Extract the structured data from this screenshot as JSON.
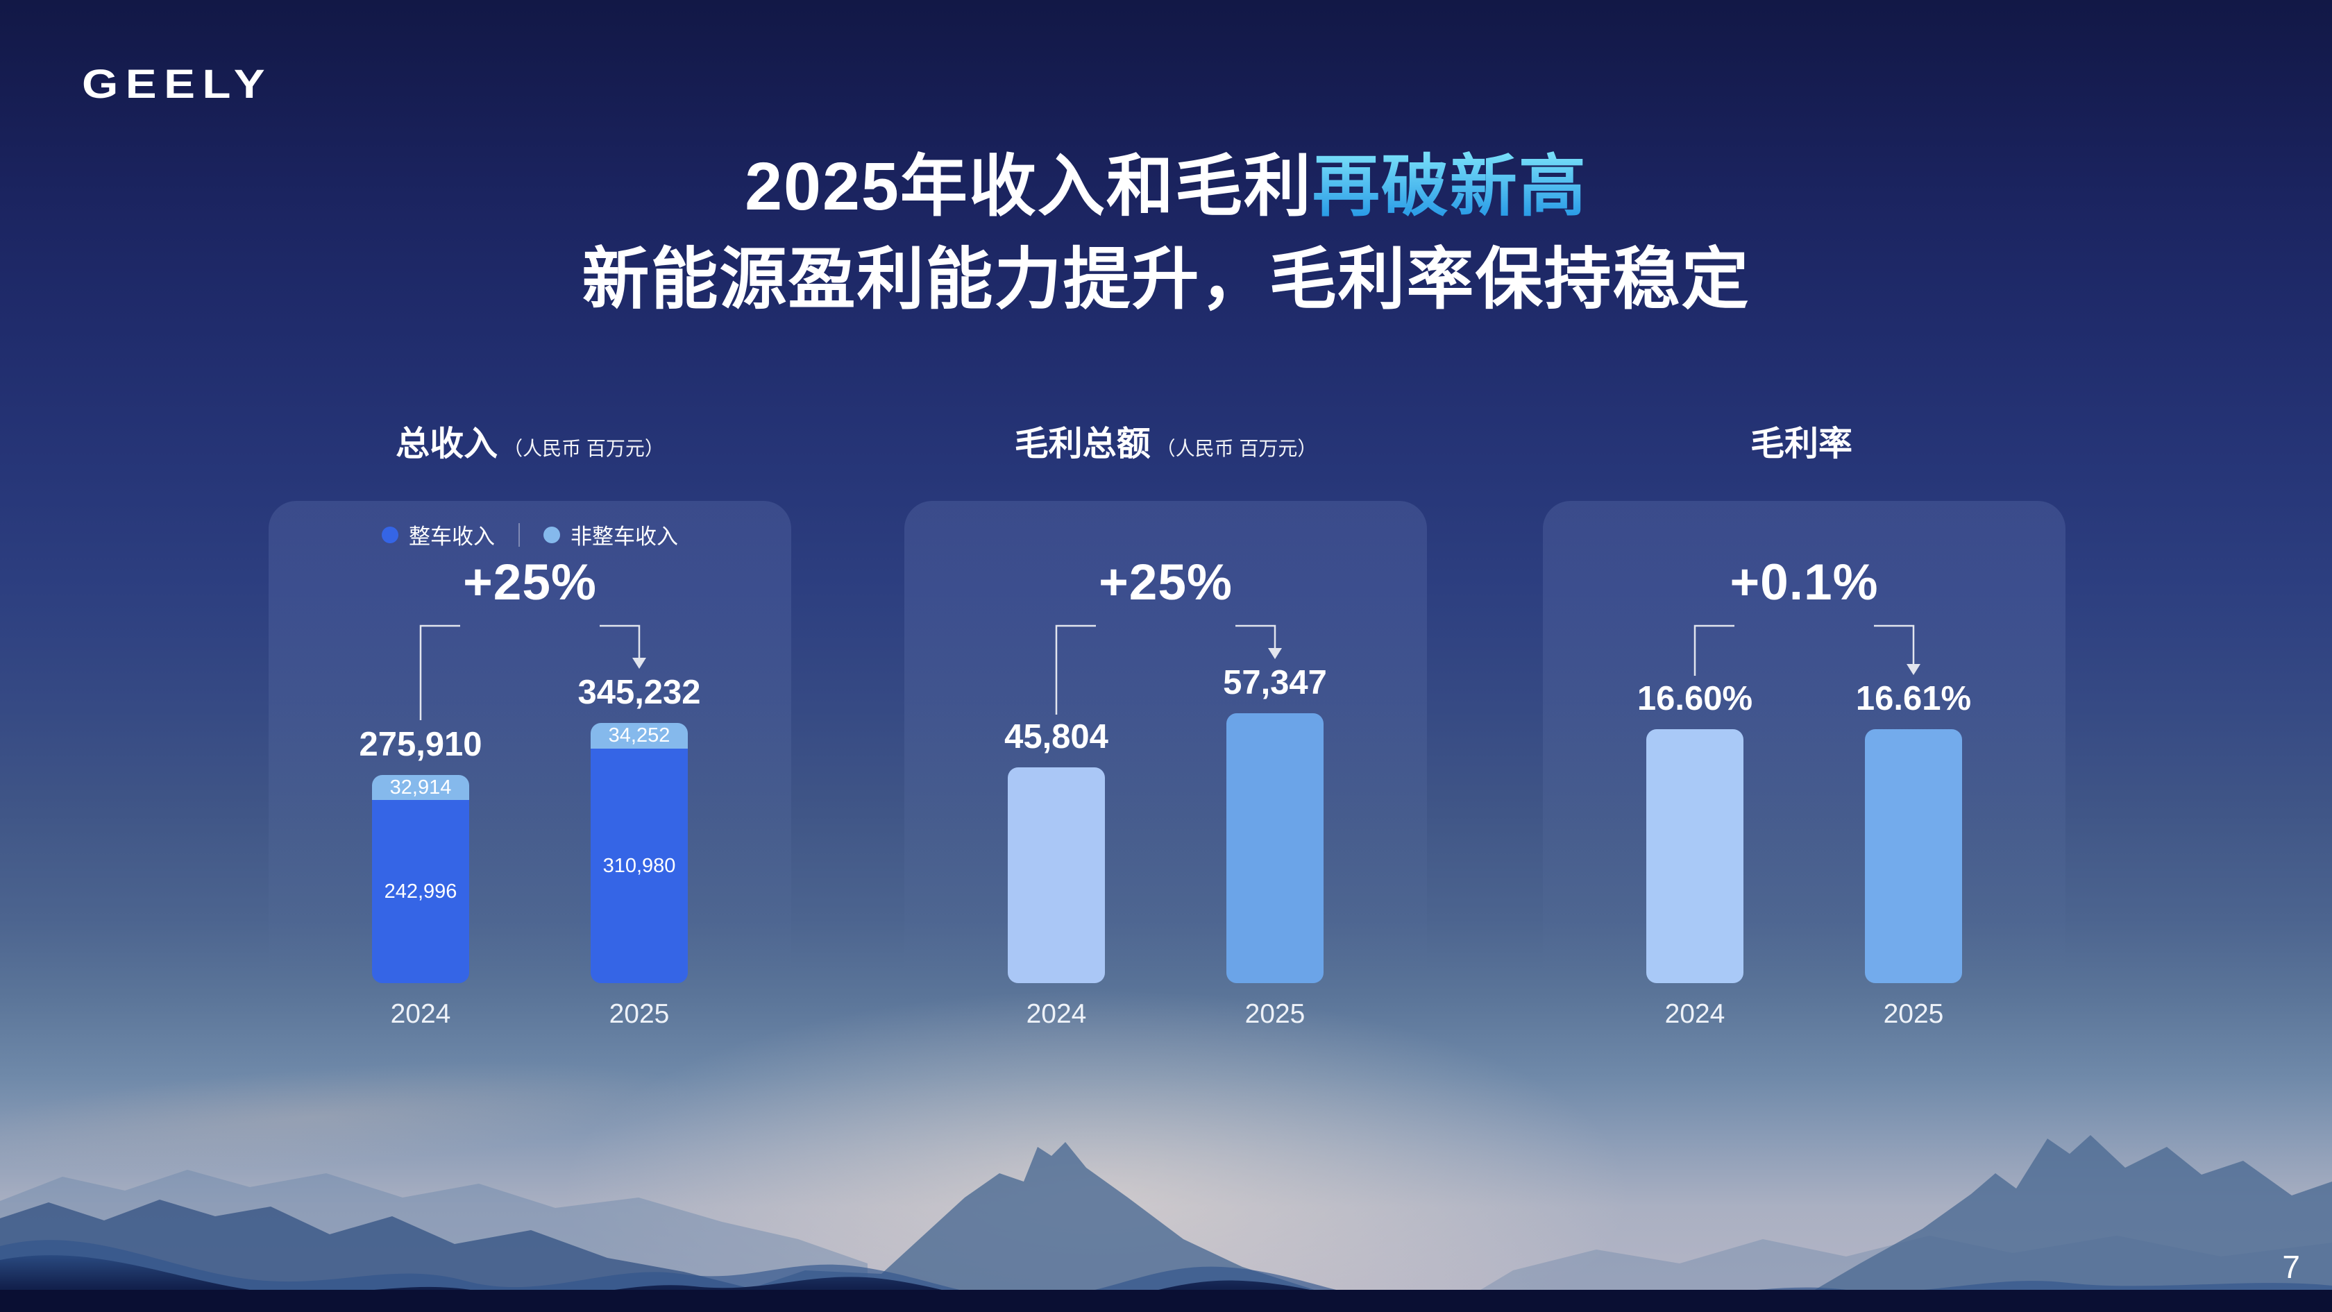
{
  "page": {
    "logo": "GEELY",
    "number": "7"
  },
  "title": {
    "line1_plain": "2025年收入和毛利",
    "line1_highlight": "再破新高",
    "line2": "新能源盈利能力提升，毛利率保持稳定",
    "highlight_gradient_top": "#7ee4fa",
    "highlight_gradient_bottom": "#2093e4"
  },
  "chart_data": [
    {
      "type": "bar",
      "stacked": true,
      "title": "总收入",
      "unit": "（人民币 百万元）",
      "growth": "+25%",
      "categories": [
        "2024",
        "2025"
      ],
      "series": [
        {
          "name": "整车收入",
          "color": "#3565e6",
          "values": [
            242996,
            310980
          ],
          "labels": [
            "242,996",
            "310,980"
          ]
        },
        {
          "name": "非整车收入",
          "color": "#85b9ec",
          "values": [
            32914,
            34252
          ],
          "labels": [
            "32,914",
            "34,252"
          ]
        }
      ],
      "totals": [
        275910,
        345232
      ],
      "totals_display": [
        "275,910",
        "345,232"
      ],
      "legend_position": "top",
      "grid": false
    },
    {
      "type": "bar",
      "stacked": false,
      "title": "毛利总额",
      "unit": "（人民币 百万元）",
      "growth": "+25%",
      "categories": [
        "2024",
        "2025"
      ],
      "totals": [
        45804,
        57347
      ],
      "totals_display": [
        "45,804",
        "57,347"
      ],
      "colors": [
        "#aac7f6",
        "#6ba4e8"
      ],
      "grid": false
    },
    {
      "type": "bar",
      "stacked": false,
      "title": "毛利率",
      "unit": "",
      "growth": "+0.1%",
      "categories": [
        "2024",
        "2025"
      ],
      "totals": [
        16.6,
        16.61
      ],
      "totals_display": [
        "16.60%",
        "16.61%"
      ],
      "colors": [
        "#a9c9f7",
        "#73abec"
      ],
      "grid": false
    }
  ]
}
